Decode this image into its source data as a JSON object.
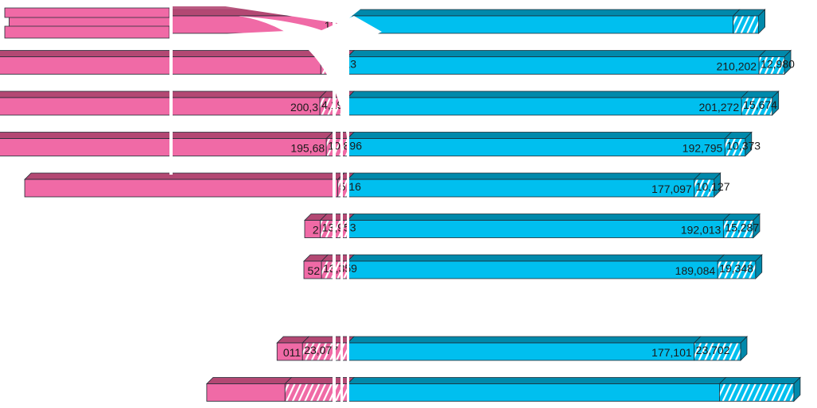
{
  "chart_data": {
    "type": "bar",
    "orientation": "horizontal",
    "stacked": true,
    "diverging": true,
    "three_d": true,
    "legend": "none",
    "grid": false,
    "colors": {
      "left_solid": "#f06aa6",
      "left_top": "#b34873",
      "left_hatch_bg": "#f06aa6",
      "right_solid": "#00bfef",
      "right_top": "#0089ab",
      "right_hatch_bg": "#00bfef",
      "hatch": "#ffffff",
      "outline": "#1d2a33"
    },
    "rows": [
      {
        "left_main": 173000,
        "left_main_label": "173,",
        "left_minor": 0,
        "left_minor_label": "",
        "right_main": 197000,
        "right_main_label": "",
        "right_minor": 13000,
        "right_minor_label": ""
      },
      {
        "left_main": 210000,
        "left_main_label": "",
        "left_minor": 13713,
        "left_minor_label": "13,713",
        "right_main": 210202,
        "right_main_label": "210,202",
        "right_minor": 12980,
        "right_minor_label": "12,980"
      },
      {
        "left_main": 200300,
        "left_main_label": "200,3",
        "left_minor": 14194,
        "left_minor_label": "4,194",
        "right_main": 201272,
        "right_main_label": "201,272",
        "right_minor": 15674,
        "right_minor_label": "15,674"
      },
      {
        "left_main": 195680,
        "left_main_label": "195,68",
        "left_minor": 10896,
        "left_minor_label": "10,896",
        "right_main": 192795,
        "right_main_label": "192,795",
        "right_minor": 10373,
        "right_minor_label": "10,373"
      },
      {
        "left_main": 160000,
        "left_main_label": "",
        "left_minor": 5016,
        "left_minor_label": "5,16",
        "right_main": 177097,
        "right_main_label": "177,097",
        "right_minor": 10127,
        "right_minor_label": "10,127"
      },
      {
        "left_main": 8000,
        "left_main_label": "2",
        "left_minor": 13953,
        "left_minor_label": "13,953",
        "right_main": 192013,
        "right_main_label": "192,013",
        "right_minor": 15287,
        "right_minor_label": "15,287"
      },
      {
        "left_main": 9000,
        "left_main_label": "52",
        "left_minor": 13359,
        "left_minor_label": "13,359",
        "right_main": 189084,
        "right_main_label": "189,084",
        "right_minor": 19348,
        "right_minor_label": "19,348"
      },
      null,
      {
        "left_main": 13000,
        "left_main_label": "011",
        "left_minor": 23077,
        "left_minor_label": "23,077",
        "right_main": 177101,
        "right_main_label": "177,101",
        "right_minor": 23702,
        "right_minor_label": "23,702"
      },
      {
        "left_main": 40000,
        "left_main_label": "",
        "left_minor": 32000,
        "left_minor_label": "",
        "right_main": 190000,
        "right_main_label": "",
        "right_minor": 38000,
        "right_minor_label": ""
      }
    ]
  }
}
